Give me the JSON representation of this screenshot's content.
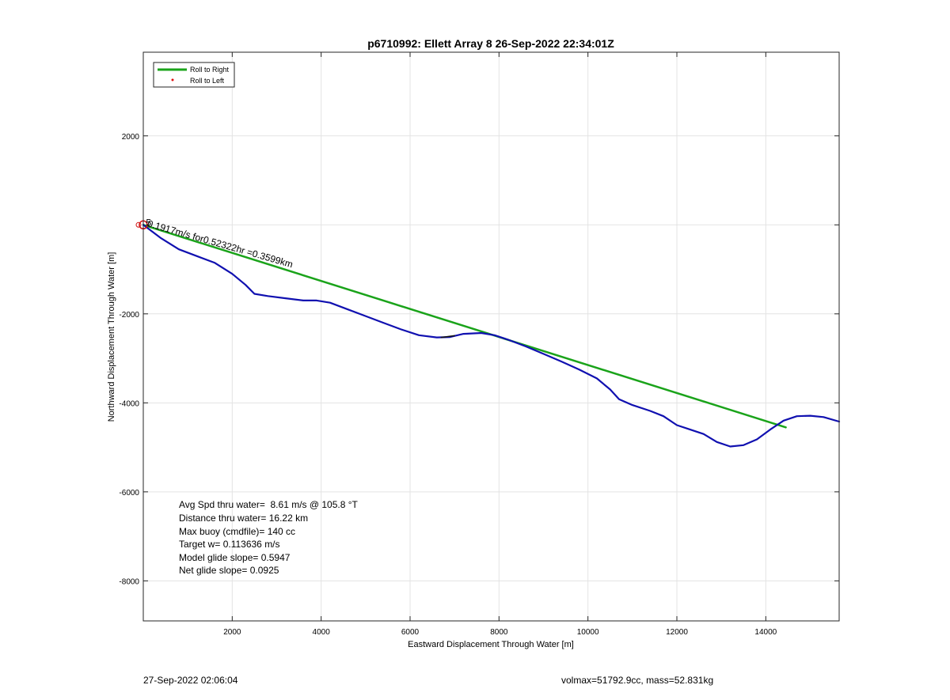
{
  "chart_data": {
    "type": "line",
    "title": "p6710992: Ellett Array 8 26-Sep-2022 22:34:01Z",
    "xlabel": "Eastward Displacement Through Water [m]",
    "ylabel": "Northward Displacement Through Water [m]",
    "xlim": [
      0,
      15650
    ],
    "ylim": [
      -8900,
      3880
    ],
    "xticks": [
      2000,
      4000,
      6000,
      8000,
      10000,
      12000,
      14000
    ],
    "yticks": [
      2000,
      -2000,
      -4000,
      -6000,
      -8000
    ],
    "grid": true,
    "legend": {
      "placement": "top-left",
      "entries": [
        {
          "label": "Roll to Right",
          "color": "#1aa31a",
          "style": "line"
        },
        {
          "label": "Roll to Left",
          "color": "#e01010",
          "style": "dot"
        }
      ]
    },
    "series": [
      {
        "name": "Roll to Right",
        "color": "#1aa31a",
        "x": [
          0,
          14450
        ],
        "y": [
          0,
          -4550
        ]
      },
      {
        "color": "#1010b0",
        "x": [
          0,
          400,
          800,
          1200,
          1600,
          2000,
          2300,
          2500,
          2800,
          3200,
          3600,
          3900,
          4200,
          4600,
          5000,
          5400,
          5800,
          6200,
          6600,
          6900,
          7200,
          7600,
          7900,
          8200,
          8600,
          9000,
          9400,
          9800,
          10200,
          10500,
          10700,
          11000,
          11400,
          11700,
          12000,
          12300,
          12600,
          12900,
          13200,
          13500,
          13800,
          14100,
          14400,
          14700,
          15000,
          15300,
          15650
        ],
        "y": [
          0,
          -300,
          -550,
          -700,
          -850,
          -1100,
          -1350,
          -1550,
          -1600,
          -1650,
          -1700,
          -1700,
          -1750,
          -1900,
          -2050,
          -2200,
          -2350,
          -2480,
          -2530,
          -2520,
          -2450,
          -2430,
          -2480,
          -2580,
          -2730,
          -2900,
          -3070,
          -3250,
          -3450,
          -3700,
          -3920,
          -4050,
          -4180,
          -4300,
          -4500,
          -4600,
          -4700,
          -4880,
          -4980,
          -4950,
          -4820,
          -4600,
          -4400,
          -4300,
          -4290,
          -4320,
          -4420
        ]
      },
      {
        "color": "#111111",
        "x": [
          6700,
          6850,
          7000
        ],
        "y": [
          -2530,
          -2510,
          -2490
        ]
      }
    ],
    "annotations": [
      {
        "text": "0.1917m/s for0.52322hr =0.3599km",
        "x": 80,
        "y": -30,
        "angle": 16
      },
      {
        "text": "5",
        "x": 60,
        "y": -20,
        "angle": 0
      }
    ],
    "info_lines": [
      "Avg Spd thru water=  8.61 m/s @ 105.8 °T",
      "Distance thru water= 16.22 km",
      "Max buoy (cmdfile)= 140 cc",
      "Target w= 0.113636 m/s",
      "Model glide slope= 0.5947",
      "Net glide slope= 0.0925"
    ]
  },
  "footer": {
    "timestamp": "27-Sep-2022 02:06:04",
    "params": "volmax=51792.9cc, mass=52.831kg"
  }
}
